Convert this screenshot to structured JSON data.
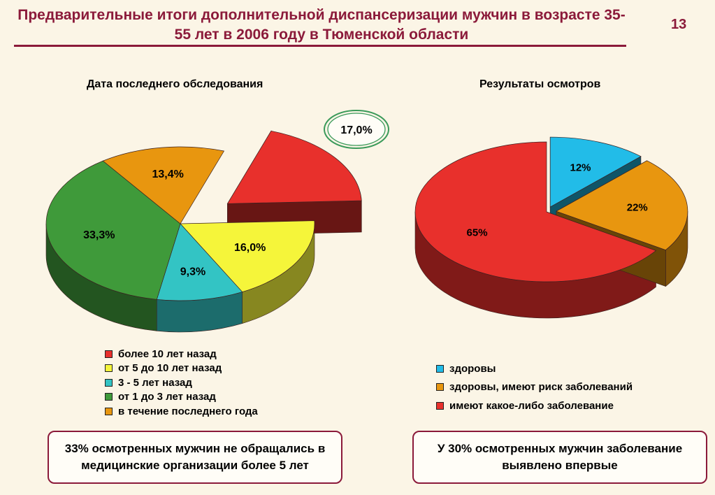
{
  "header": {
    "title": "Предварительные итоги дополнительной диспансеризации мужчин в возрасте 35-55 лет в 2006 году в Тюменской области",
    "slide_number": "13"
  },
  "chart_data": [
    {
      "type": "pie",
      "title": "Дата последнего обследования",
      "slices": [
        {
          "label": "более 10 лет назад",
          "value": 17.0,
          "display": "17,0%",
          "color": "#e8302c",
          "exploded": true,
          "highlighted": true
        },
        {
          "label": "от 5 до 10 лет назад",
          "value": 16.0,
          "display": "16,0%",
          "color": "#f5f53a"
        },
        {
          "label": "3 - 5 лет назад",
          "value": 9.3,
          "display": "9,3%",
          "color": "#33c4c4"
        },
        {
          "label": "от 1 до 3 лет назад",
          "value": 33.3,
          "display": "33,3%",
          "color": "#3f9a3a"
        },
        {
          "label": "в течение последнего года",
          "value": 13.4,
          "display": "13,4%",
          "color": "#e8960f"
        }
      ],
      "legend_position": "bottom"
    },
    {
      "type": "pie",
      "title": "Результаты осмотров",
      "slices": [
        {
          "label": "здоровы",
          "value": 12,
          "display": "12%",
          "color": "#22bce8"
        },
        {
          "label": "здоровы, имеют риск заболеваний",
          "value": 22,
          "display": "22%",
          "color": "#e8960f"
        },
        {
          "label": "имеют какое-либо заболевание",
          "value": 65,
          "display": "65%",
          "color": "#e8302c"
        }
      ],
      "legend_position": "bottom"
    }
  ],
  "notes": {
    "left": "33% осмотренных мужчин не обращались в медицинские организации более 5 лет",
    "right": "У 30% осмотренных мужчин заболевание выявлено впервые"
  }
}
